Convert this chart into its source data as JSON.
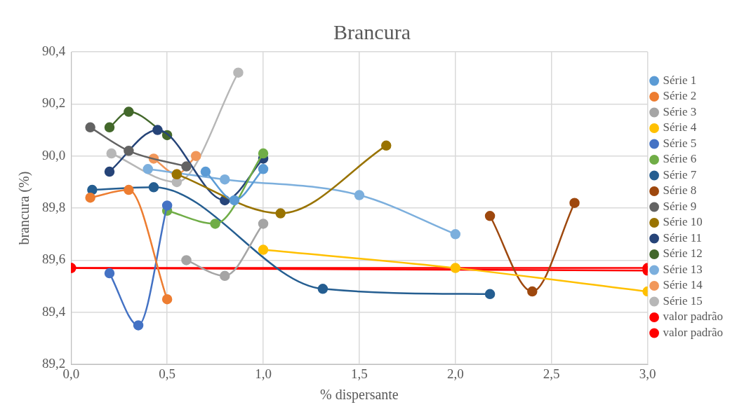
{
  "chart_data": {
    "type": "line",
    "title": "Brancura",
    "xlabel": "% dispersante",
    "ylabel": "brancura (%)",
    "xlim": [
      0,
      3
    ],
    "xticks": [
      {
        "value": 0,
        "label": "0,0"
      },
      {
        "value": 0.5,
        "label": "0,5"
      },
      {
        "value": 1,
        "label": "1,0"
      },
      {
        "value": 1.5,
        "label": "1,5"
      },
      {
        "value": 2,
        "label": "2,0"
      },
      {
        "value": 2.5,
        "label": "2,5"
      },
      {
        "value": 3,
        "label": "3,0"
      }
    ],
    "ylim": [
      89.2,
      90.4
    ],
    "yticks": [
      {
        "value": 89.2,
        "label": "89,2"
      },
      {
        "value": 89.4,
        "label": "89,4"
      },
      {
        "value": 89.6,
        "label": "89,6"
      },
      {
        "value": 89.8,
        "label": "89,8"
      },
      {
        "value": 90,
        "label": "90,0"
      },
      {
        "value": 90.2,
        "label": "90,2"
      },
      {
        "value": 90.4,
        "label": "90,4"
      }
    ],
    "grid": true,
    "legend": "right",
    "marker": "circle",
    "line_style": "solid",
    "series": [
      {
        "name": "Série 1",
        "color": "#5b9bd5",
        "x": [
          0.7,
          0.85,
          1.0
        ],
        "values": [
          89.94,
          89.83,
          89.95
        ]
      },
      {
        "name": "Série 2",
        "color": "#ed7d31",
        "x": [
          0.1,
          0.3,
          0.5
        ],
        "values": [
          89.84,
          89.87,
          89.45
        ]
      },
      {
        "name": "Série 3",
        "color": "#a5a5a5",
        "x": [
          0.6,
          0.8,
          1.0
        ],
        "values": [
          89.6,
          89.54,
          89.74
        ]
      },
      {
        "name": "Série 4",
        "color": "#ffc000",
        "x": [
          1.0,
          2.0,
          3.0
        ],
        "values": [
          89.64,
          89.57,
          89.48
        ]
      },
      {
        "name": "Série 5",
        "color": "#4472c4",
        "x": [
          0.2,
          0.35,
          0.5
        ],
        "values": [
          89.55,
          89.35,
          89.81
        ]
      },
      {
        "name": "Série 6",
        "color": "#70ad47",
        "x": [
          0.5,
          0.75,
          1.0
        ],
        "values": [
          89.79,
          89.74,
          90.01
        ]
      },
      {
        "name": "Série 7",
        "color": "#255e91",
        "x": [
          0.11,
          0.43,
          1.31,
          2.18
        ],
        "values": [
          89.87,
          89.88,
          89.49,
          89.47
        ]
      },
      {
        "name": "Série 8",
        "color": "#9e480e",
        "x": [
          2.18,
          2.4,
          2.62
        ],
        "values": [
          89.77,
          89.48,
          89.82
        ]
      },
      {
        "name": "Série 9",
        "color": "#636363",
        "x": [
          0.1,
          0.3,
          0.6
        ],
        "values": [
          90.11,
          90.02,
          89.96
        ]
      },
      {
        "name": "Série 10",
        "color": "#997300",
        "x": [
          0.55,
          1.09,
          1.64
        ],
        "values": [
          89.93,
          89.78,
          90.04
        ]
      },
      {
        "name": "Série 11",
        "color": "#264478",
        "x": [
          0.2,
          0.45,
          0.8,
          1.0
        ],
        "values": [
          89.94,
          90.1,
          89.83,
          89.99
        ]
      },
      {
        "name": "Série 12",
        "color": "#43682b",
        "x": [
          0.2,
          0.3,
          0.5
        ],
        "values": [
          90.11,
          90.17,
          90.08
        ]
      },
      {
        "name": "Série 13",
        "color": "#7cafdd",
        "x": [
          0.4,
          0.8,
          1.5,
          2.0
        ],
        "values": [
          89.95,
          89.91,
          89.85,
          89.7
        ]
      },
      {
        "name": "Série 14",
        "color": "#f1975a",
        "x": [
          0.43,
          0.55,
          0.65
        ],
        "values": [
          89.99,
          89.93,
          90.0
        ]
      },
      {
        "name": "Série 15",
        "color": "#b7b7b7",
        "x": [
          0.21,
          0.55,
          0.87
        ],
        "values": [
          90.01,
          89.9,
          90.32
        ]
      },
      {
        "name": "valor padrão",
        "color": "#ff0000",
        "x": [
          0,
          3
        ],
        "values": [
          89.57,
          89.56
        ]
      },
      {
        "name": "valor padrão",
        "color": "#ff0000",
        "x": [
          0,
          3
        ],
        "values": [
          89.57,
          89.57
        ]
      }
    ]
  }
}
